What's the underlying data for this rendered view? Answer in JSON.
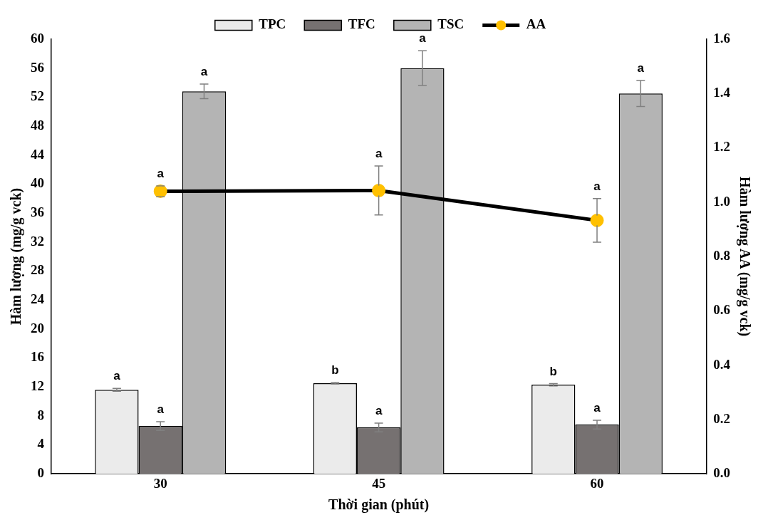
{
  "chart_data": {
    "type": "bar",
    "xlabel": "Thời gian (phút)",
    "ylabel": "Hàm lượng (mg/g vck)",
    "y2label": "Hàm lượng AA (mg/g vck)",
    "categories": [
      "30",
      "45",
      "60"
    ],
    "series": [
      {
        "name": "TPC",
        "color": "#ebebeb",
        "values": [
          11.6,
          12.5,
          12.3
        ],
        "errors": [
          0.2,
          0.1,
          0.15
        ],
        "value_labels": [
          "a",
          "b",
          "b"
        ]
      },
      {
        "name": "TFC",
        "color": "#767171",
        "values": [
          6.6,
          6.4,
          6.8
        ],
        "errors": [
          0.6,
          0.6,
          0.6
        ],
        "value_labels": [
          "a",
          "a",
          "a"
        ]
      },
      {
        "name": "TSC",
        "color": "#b4b4b4",
        "values": [
          52.8,
          56.0,
          52.5
        ],
        "errors": [
          1.0,
          2.4,
          1.8
        ],
        "value_labels": [
          "a",
          "a",
          "a"
        ]
      },
      {
        "name": "AA",
        "type": "line",
        "axis": "y2",
        "color": "#ffc000",
        "marker": "circle",
        "values": [
          1.04,
          1.043,
          0.933
        ],
        "errors": [
          0.02,
          0.09,
          0.08
        ],
        "value_labels": [
          "a",
          "a",
          "a"
        ]
      }
    ],
    "ylim": [
      0,
      60
    ],
    "yticks": [
      0,
      4,
      8,
      12,
      16,
      20,
      24,
      28,
      32,
      36,
      40,
      44,
      48,
      52,
      56,
      60
    ],
    "y2lim": [
      0,
      1.6
    ],
    "y2ticks": [
      {
        "value": 0,
        "label": "0.0"
      },
      0.2,
      0.4,
      0.6,
      0.8,
      {
        "value": 1,
        "label": "1.0"
      },
      1.2,
      1.4,
      1.6
    ],
    "grid": false,
    "legend": "top"
  }
}
